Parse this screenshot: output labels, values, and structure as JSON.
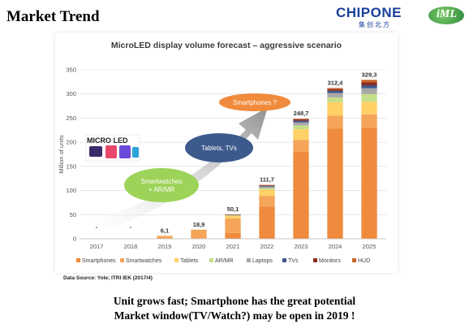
{
  "slide": {
    "title": "Market Trend",
    "logo_left": "CHIPONE",
    "logo_left_cn": "集创北方",
    "logo_right": "iML",
    "source": "Data Source: Yole; ITRI IEK (2017/4)",
    "caption_line1": "Unit grows fast;  Smartphone has the great potential",
    "caption_line2": "Market window(TV/Watch?) may be open in 2019 !"
  },
  "chart_data": {
    "type": "bar",
    "title": "MicroLED display volume forecast – aggressive scenario",
    "ylabel": "Million of units",
    "ylim": [
      0,
      350
    ],
    "yticks": [
      0,
      50,
      100,
      150,
      200,
      250,
      300,
      350
    ],
    "categories": [
      "2017",
      "2018",
      "2019",
      "2020",
      "2021",
      "2022",
      "2023",
      "2024",
      "2025"
    ],
    "totals": [
      "-",
      "-",
      "6,1",
      "18,9",
      "50,1",
      "111,7",
      "248,7",
      "312,4",
      "329,3"
    ],
    "total_values": [
      0,
      0,
      6.1,
      18.9,
      50.1,
      111.7,
      248.7,
      312.4,
      329.3
    ],
    "series": [
      {
        "name": "Smartphones",
        "color": "#f08a3c",
        "values": [
          0,
          0,
          0,
          0,
          12,
          67,
          180,
          228,
          230
        ]
      },
      {
        "name": "Smartwatches",
        "color": "#f5a55a",
        "values": [
          0,
          0,
          6.1,
          18.9,
          30,
          22,
          25,
          27,
          28
        ]
      },
      {
        "name": "Tablets",
        "color": "#ffd166",
        "values": [
          0,
          0,
          0,
          0,
          5,
          13,
          22,
          28,
          26
        ]
      },
      {
        "name": "AR/MR",
        "color": "#c6dd8a",
        "values": [
          0,
          0,
          0,
          0,
          1.5,
          3,
          8,
          10,
          16
        ]
      },
      {
        "name": "Laptops",
        "color": "#a8a8a8",
        "values": [
          0,
          0,
          0,
          0,
          1,
          3,
          6,
          9,
          12
        ]
      },
      {
        "name": "TVs",
        "color": "#3d5a8c",
        "values": [
          0,
          0,
          0,
          0,
          0.3,
          1.5,
          3.5,
          4.5,
          6
        ]
      },
      {
        "name": "Monitors",
        "color": "#8b2c20",
        "values": [
          0,
          0,
          0,
          0,
          0.2,
          1.2,
          3,
          3.4,
          6
        ]
      },
      {
        "name": "HUD",
        "color": "#c8642a",
        "values": [
          0,
          0,
          0,
          0,
          0.1,
          1,
          1.2,
          2.5,
          5.3
        ]
      }
    ],
    "legend_position": "bottom",
    "grid": true,
    "annotations": {
      "oval1": "Smartphones ?",
      "oval2": "Tablets, TVs",
      "oval3_line1": "Smartwatches",
      "oval3_line2": "+ AR/MR",
      "micro_led_image_label": "MICRO LED"
    }
  }
}
